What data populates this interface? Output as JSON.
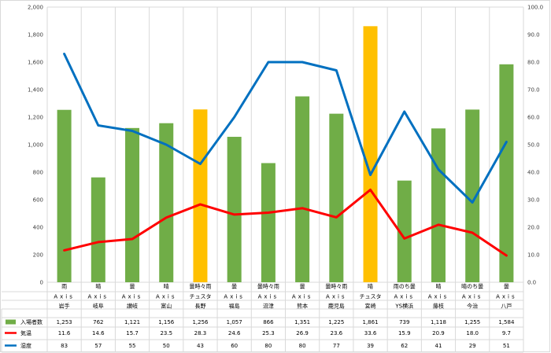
{
  "chart_data": {
    "type": "bar",
    "categories": [
      [
        "雨",
        "Axis",
        "岩手"
      ],
      [
        "晴",
        "Axis",
        "岐阜"
      ],
      [
        "曇",
        "Axis",
        "讃岐"
      ],
      [
        "晴",
        "Axis",
        "富山"
      ],
      [
        "曇時々雨",
        "チュスタ",
        "長野"
      ],
      [
        "曇",
        "Axis",
        "福島"
      ],
      [
        "曇時々雨",
        "Axis",
        "沼津"
      ],
      [
        "曇",
        "Axis",
        "熊本"
      ],
      [
        "曇時々雨",
        "Axis",
        "鹿児島"
      ],
      [
        "晴",
        "チュスタ",
        "宮崎"
      ],
      [
        "雨のち曇",
        "Axis",
        "YS横浜"
      ],
      [
        "晴",
        "Axis",
        "藤枝"
      ],
      [
        "晴のち曇",
        "Axis",
        "今治"
      ],
      [
        "曇",
        "Axis",
        "八戸"
      ]
    ],
    "series": [
      {
        "name": "入場者数",
        "type": "bar",
        "axis": "left",
        "color": "#70ad47",
        "highlight_color": "#ffc000",
        "highlight_indices": [
          4,
          9
        ],
        "values": [
          1253,
          762,
          1121,
          1156,
          1256,
          1057,
          866,
          1351,
          1225,
          1861,
          739,
          1118,
          1255,
          1584
        ],
        "labels": [
          "1,253",
          "762",
          "1,121",
          "1,156",
          "1,256",
          "1,057",
          "866",
          "1,351",
          "1,225",
          "1,861",
          "739",
          "1,118",
          "1,255",
          "1,584"
        ]
      },
      {
        "name": "気温",
        "type": "line",
        "axis": "right",
        "color": "#ff0000",
        "values": [
          11.6,
          14.6,
          15.7,
          23.5,
          28.3,
          24.6,
          25.3,
          26.9,
          23.6,
          33.6,
          15.9,
          20.9,
          18.0,
          9.7
        ],
        "labels": [
          "11.6",
          "14.6",
          "15.7",
          "23.5",
          "28.3",
          "24.6",
          "25.3",
          "26.9",
          "23.6",
          "33.6",
          "15.9",
          "20.9",
          "18.0",
          "9.7"
        ]
      },
      {
        "name": "湿度",
        "type": "line",
        "axis": "right",
        "color": "#0070c0",
        "values": [
          83,
          57,
          55,
          50,
          43,
          60,
          80,
          80,
          77,
          39,
          62,
          41,
          29,
          51
        ],
        "labels": [
          "83",
          "57",
          "55",
          "50",
          "43",
          "60",
          "80",
          "80",
          "77",
          "39",
          "62",
          "41",
          "29",
          "51"
        ]
      }
    ],
    "y_left": {
      "min": 0,
      "max": 2000,
      "step": 200,
      "tick_labels": [
        "0",
        "200",
        "400",
        "600",
        "800",
        "1,000",
        "1,200",
        "1,400",
        "1,600",
        "1,800",
        "2,000"
      ]
    },
    "y_right": {
      "min": 0,
      "max": 100,
      "step": 10,
      "tick_labels": [
        "0.0",
        "10.0",
        "20.0",
        "30.0",
        "40.0",
        "50.0",
        "60.0",
        "70.0",
        "80.0",
        "90.0",
        "100.0"
      ]
    },
    "grid": "vertical category lines",
    "legend": "data table below chart"
  }
}
